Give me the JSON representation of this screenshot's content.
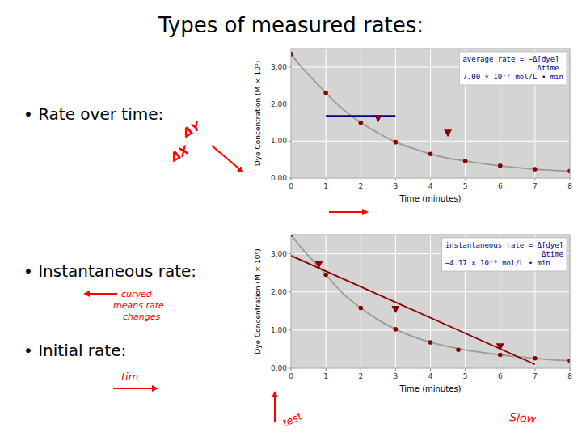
{
  "title": "Types of measured rates:",
  "bullets": [
    "• Rate over time:",
    "• Instantaneous rate:",
    "• Initial rate:"
  ],
  "annotations": [
    "ΔY",
    "ΔX",
    "curved",
    "means rate",
    "changes",
    "tim",
    "Slow",
    "test"
  ],
  "chart_data": [
    {
      "type": "line",
      "xlabel": "Time (minutes)",
      "ylabel": "Dye Concentration (M × 10⁶)",
      "annotations": [
        "average rate = −Δ[dye]",
        "Δtime",
        "7.00 × 10⁻⁷ mol/L • min"
      ],
      "xlim": [
        0,
        8
      ],
      "ylim": [
        0,
        3.5
      ],
      "xticks": [
        0,
        1,
        2,
        3,
        4,
        5,
        6,
        7,
        8
      ],
      "yticks": [
        {
          "value": 0.0,
          "label": "0.00"
        },
        {
          "value": 1.0,
          "label": "1.00"
        },
        {
          "value": 2.0,
          "label": "2.00"
        },
        {
          "value": 3.0,
          "label": "3.00"
        }
      ],
      "grid": true,
      "series": [
        {
          "type": "line",
          "color": "#999999",
          "line_style": "solid",
          "x": [
            0,
            0.3,
            0.6,
            1,
            1.5,
            2,
            2.5,
            3,
            3.5,
            4,
            4.5,
            5,
            5.5,
            6,
            6.5,
            7,
            7.5,
            8
          ],
          "values": [
            3.35,
            3.0,
            2.7,
            2.3,
            1.85,
            1.5,
            1.22,
            0.97,
            0.8,
            0.65,
            0.54,
            0.46,
            0.39,
            0.33,
            0.28,
            0.24,
            0.21,
            0.19
          ]
        },
        {
          "type": "scatter",
          "color": "#8b0000",
          "marker": "circle",
          "x": [
            0,
            1,
            2,
            3,
            4,
            5,
            6,
            7,
            8
          ],
          "values": [
            3.35,
            2.3,
            1.5,
            0.97,
            0.65,
            0.46,
            0.33,
            0.24,
            0.19
          ]
        },
        {
          "type": "line",
          "color": "#00008b",
          "line_style": "solid",
          "x": [
            1,
            3
          ],
          "values": [
            1.68,
            1.68
          ]
        },
        {
          "type": "scatter",
          "color": "#8b0000",
          "marker": "triangle-down",
          "x": [
            2.5,
            4.5
          ],
          "values": [
            1.62,
            1.22
          ]
        }
      ]
    },
    {
      "type": "line",
      "xlabel": "Time (minutes)",
      "ylabel": "Dye Concentration (M × 10⁶)",
      "annotations": [
        "instantaneous rate = Δ[dye]",
        "Δtime",
        "−4.17 × 10⁻⁶ mol/L • min"
      ],
      "xlim": [
        0,
        8
      ],
      "ylim": [
        0,
        3.5
      ],
      "xticks": [
        0,
        1,
        2,
        3,
        4,
        5,
        6,
        7,
        8
      ],
      "yticks": [
        {
          "value": 0.0,
          "label": "0.00"
        },
        {
          "value": 1.0,
          "label": "1.00"
        },
        {
          "value": 2.0,
          "label": "2.00"
        },
        {
          "value": 3.0,
          "label": "3.00"
        }
      ],
      "grid": true,
      "series": [
        {
          "type": "line",
          "color": "#999999",
          "line_style": "solid",
          "x": [
            0,
            0.3,
            0.6,
            1,
            1.5,
            2,
            2.5,
            3,
            3.5,
            4,
            4.5,
            5,
            5.5,
            6,
            6.5,
            7,
            7.5,
            8
          ],
          "values": [
            3.5,
            3.15,
            2.85,
            2.45,
            1.95,
            1.58,
            1.27,
            1.02,
            0.83,
            0.68,
            0.57,
            0.48,
            0.41,
            0.35,
            0.3,
            0.26,
            0.22,
            0.2
          ]
        },
        {
          "type": "scatter",
          "color": "#8b0000",
          "marker": "circle",
          "x": [
            0,
            1,
            2,
            3,
            4,
            4.8,
            6,
            7,
            8
          ],
          "values": [
            3.5,
            2.45,
            1.58,
            1.02,
            0.68,
            0.48,
            0.35,
            0.26,
            0.2
          ]
        },
        {
          "type": "line",
          "color": "#8b0000",
          "line_style": "solid",
          "x": [
            0.0,
            7.0
          ],
          "values": [
            2.95,
            0.1
          ]
        },
        {
          "type": "scatter",
          "color": "#8b0000",
          "marker": "triangle-down",
          "x": [
            0.8,
            3.0,
            6.0
          ],
          "values": [
            2.72,
            1.55,
            0.57
          ]
        }
      ]
    }
  ]
}
